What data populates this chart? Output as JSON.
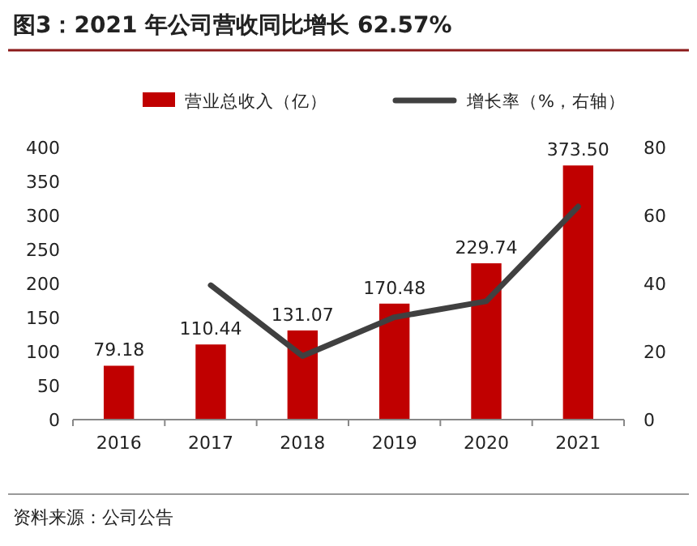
{
  "chart_data": {
    "type": "bar",
    "title": "图3：2021 年公司营收同比增长 62.57%",
    "categories": [
      "2016",
      "2017",
      "2018",
      "2019",
      "2020",
      "2021"
    ],
    "series": [
      {
        "name": "营业总收入（亿）",
        "color": "#c00000",
        "values": [
          79.18,
          110.44,
          131.07,
          170.48,
          229.74,
          373.5
        ],
        "value_labels": [
          "79.18",
          "110.44",
          "131.07",
          "170.48",
          "229.74",
          "373.50"
        ]
      },
      {
        "name": "增长率（%，右轴）",
        "type": "line",
        "axis": "y2",
        "color": "#404040",
        "values": [
          null,
          39.5,
          18.7,
          30.1,
          34.8,
          62.6
        ]
      }
    ],
    "ylim": [
      0,
      400
    ],
    "yticks": [
      0,
      50,
      100,
      150,
      200,
      250,
      300,
      350,
      400
    ],
    "y2lim": [
      0,
      80
    ],
    "y2ticks": [
      0,
      20,
      40,
      60,
      80
    ],
    "legend": "top",
    "grid": false,
    "annotations": [
      "资料来源：公司公告"
    ]
  }
}
